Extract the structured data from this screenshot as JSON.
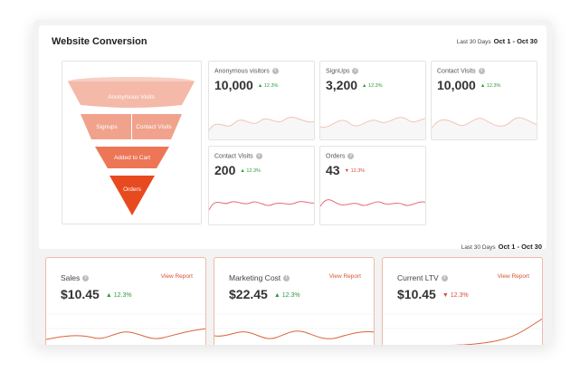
{
  "top": {
    "title": "Website Conversion",
    "range_label": "Last 30 Days",
    "range_value": "Oct 1 - Oct 30"
  },
  "funnel": {
    "stages": [
      {
        "label": "Anonymous Visits",
        "color": "#f4b9a8"
      },
      {
        "label": "Signups",
        "color": "#f0a28c"
      },
      {
        "label": "Contact Visits",
        "color": "#f0a28c"
      },
      {
        "label": "Added to Cart",
        "color": "#ec7656"
      },
      {
        "label": "Orders",
        "color": "#e84a20"
      }
    ]
  },
  "metrics": [
    {
      "label": "Anonymous visitors",
      "value": "10,000",
      "delta": "12.3%",
      "dir": "up",
      "arrow": "▲"
    },
    {
      "label": "SignUps",
      "value": "3,200",
      "delta": "12.3%",
      "dir": "up",
      "arrow": "▲"
    },
    {
      "label": "Contact Visits",
      "value": "10,000",
      "delta": "12.3%",
      "dir": "up",
      "arrow": "▲"
    },
    {
      "label": "Contact Visits",
      "value": "200",
      "delta": "12.3%",
      "dir": "up",
      "arrow": "▲"
    },
    {
      "label": "Orders",
      "value": "43",
      "delta": "12.3%",
      "dir": "down",
      "arrow": "▼"
    }
  ],
  "bottom": {
    "range_label": "Last 30 Days",
    "range_value": "Oct 1 - Oct 30",
    "cards": [
      {
        "label": "Sales",
        "value": "$10.45",
        "delta": "12.3%",
        "dir": "up",
        "arrow": "▲",
        "link": "View Report"
      },
      {
        "label": "Marketing Cost",
        "value": "$22.45",
        "delta": "12.3%",
        "dir": "up",
        "arrow": "▲",
        "link": "View Report"
      },
      {
        "label": "Current LTV",
        "value": "$10.45",
        "delta": "12.3%",
        "dir": "down",
        "arrow": "▼",
        "link": "View Report"
      }
    ]
  },
  "info_glyph": "i",
  "colors": {
    "accent": "#d9542e",
    "positive": "#2e9a3e",
    "negative": "#d94c3d",
    "sparkline_light": "#f2c4b6",
    "sparkline_pink": "#e86a7a",
    "sparkline_orange": "#d9643a"
  }
}
